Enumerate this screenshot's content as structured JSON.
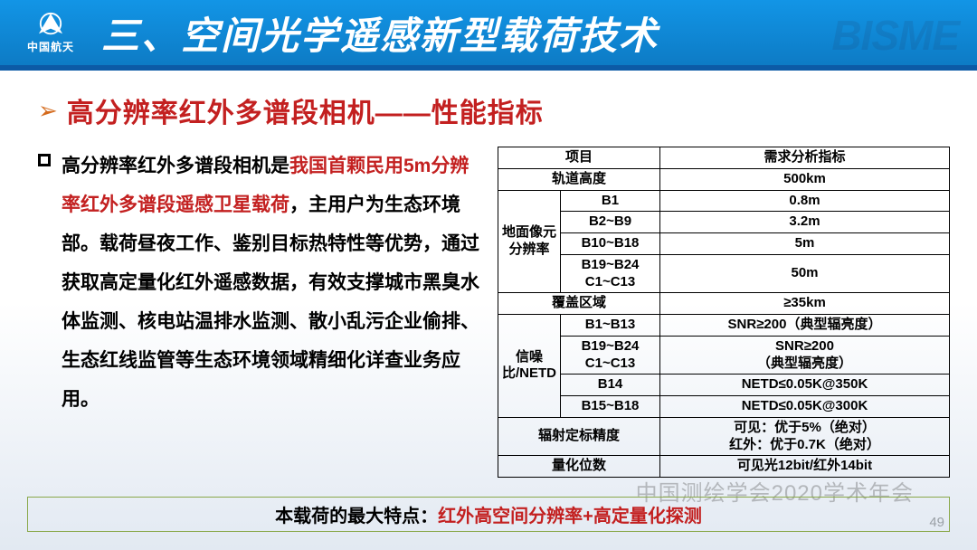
{
  "header": {
    "logo_text": "中国航天",
    "title": "三、空间光学遥感新型载荷技术",
    "watermark": "BISME"
  },
  "subtitle": "高分辨率红外多谱段相机——性能指标",
  "paragraph": {
    "p1_black": "高分辨率红外多谱段相机是",
    "p1_red": "我国首颗民用5m分辨率红外多谱段遥感卫星载荷",
    "p2_black": "，主用户为生态环境部。载荷昼夜工作、鉴别目标热特性等优势，通过获取高定量化红外遥感数据，有效支撑城市黑臭水体监测、核电站温排水监测、散小乱污企业偷排、生态红线监管等生态环境领域精细化详查业务应用。"
  },
  "table": {
    "columns": [
      "项目",
      "需求分析指标"
    ],
    "orbit": {
      "label": "轨道高度",
      "value": "500km"
    },
    "gsd": {
      "label": "地面像元分辨率",
      "rows": [
        {
          "band": "B1",
          "val": "0.8m"
        },
        {
          "band": "B2~B9",
          "val": "3.2m"
        },
        {
          "band": "B10~B18",
          "val": "5m"
        },
        {
          "band": "B19~B24\nC1~C13",
          "val": "50m"
        }
      ]
    },
    "coverage": {
      "label": "覆盖区域",
      "value": "≥35km"
    },
    "snr": {
      "label": "信噪比/NETD",
      "rows": [
        {
          "band": "B1~B13",
          "val": "SNR≥200（典型辐亮度）"
        },
        {
          "band": "B19~B24\nC1~C13",
          "val": "SNR≥200\n（典型辐亮度）"
        },
        {
          "band": "B14",
          "val": "NETD≤0.05K@350K"
        },
        {
          "band": "B15~B18",
          "val": "NETD≤0.05K@300K"
        }
      ]
    },
    "calib": {
      "label": "辐射定标精度",
      "value": "可见：优于5%（绝对）\n红外：优于0.7K（绝对）"
    },
    "quant": {
      "label": "量化位数",
      "value": "可见光12bit/红外14bit"
    }
  },
  "footer": {
    "black": "本载荷的最大特点：",
    "red": "红外高空间分辨率+高定量化探测"
  },
  "watermark2": "中国测绘学会2020学术年会",
  "page_number": "49",
  "style": {
    "header_bg_top": "#1295e6",
    "header_bg_bottom": "#0d7bc5",
    "underline": "#0c5aa6",
    "accent_red": "#c32020",
    "arrow_orange": "#d46a1c",
    "footer_border": "#8aa84a",
    "text_black": "#000000",
    "page_bg_bottom": "#e2e9f2"
  }
}
